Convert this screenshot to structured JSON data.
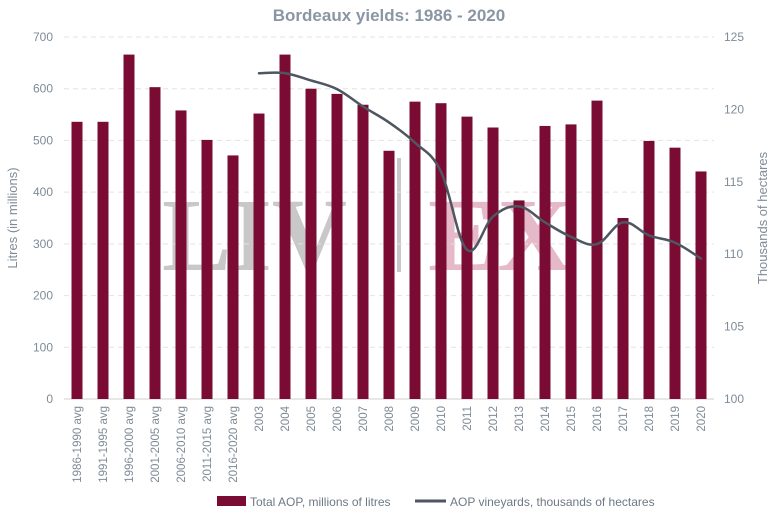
{
  "chart_data": {
    "type": "bar",
    "title": "Bordeaux yields: 1986 - 2020",
    "ylabel": "Litres (in millions)",
    "y2label": "Thousands of hectares",
    "ylim": [
      0,
      700
    ],
    "y2lim": [
      100,
      125
    ],
    "yticks": [
      "0",
      "100",
      "200",
      "300",
      "400",
      "500",
      "600",
      "700"
    ],
    "y2ticks": [
      "100",
      "105",
      "110",
      "115",
      "120",
      "125"
    ],
    "grid": true,
    "legend_position": "bottom",
    "categories": [
      "1986-1990 avg",
      "1991-1995 avg",
      "1996-2000 avg",
      "2001-2005 avg",
      "2006-2010 avg",
      "2011-2015 avg",
      "2016-2020 avg",
      "2003",
      "2004",
      "2005",
      "2006",
      "2007",
      "2008",
      "2009",
      "2010",
      "2011",
      "2012",
      "2013",
      "2014",
      "2015",
      "2016",
      "2017",
      "2018",
      "2019",
      "2020"
    ],
    "series": [
      {
        "name": "Total AOP, millions of litres",
        "type": "bar",
        "axis": "left",
        "color": "#7a0b33",
        "values": [
          536,
          536,
          666,
          603,
          558,
          501,
          471,
          552,
          666,
          600,
          590,
          569,
          480,
          575,
          572,
          546,
          525,
          384,
          528,
          531,
          577,
          350,
          499,
          486,
          440
        ]
      },
      {
        "name": "AOP vineyards, thousands of hectares",
        "type": "line",
        "axis": "right",
        "color": "#4d5661",
        "values": [
          null,
          null,
          null,
          null,
          null,
          null,
          null,
          122.5,
          122.5,
          122.0,
          121.4,
          120.2,
          119.1,
          117.7,
          115.7,
          110.3,
          112.6,
          113.3,
          112.2,
          111.2,
          110.7,
          112.2,
          111.3,
          110.8,
          109.7
        ]
      }
    ]
  },
  "watermark": {
    "left": "LIV",
    "right": "EX",
    "left_color": "#c8c8c8",
    "right_color": "#e6b9c8"
  },
  "colors": {
    "axis_text": "#7f8b97",
    "title": "#8a96a3",
    "grid": "#e3e3e3"
  }
}
